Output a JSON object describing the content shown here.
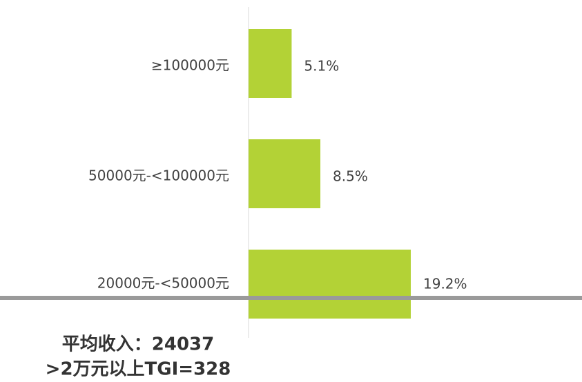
{
  "chart_data": {
    "type": "hbar",
    "categories": [
      "≥100000元",
      "50000元-<100000元",
      "20000元-<50000元"
    ],
    "values": [
      5.1,
      8.5,
      19.2
    ],
    "value_labels": [
      "5.1%",
      "8.5%",
      "19.2%"
    ],
    "color": "#b3d236",
    "annotations": [
      "平均收入：24037",
      ">2万元以上TGI=328"
    ]
  }
}
